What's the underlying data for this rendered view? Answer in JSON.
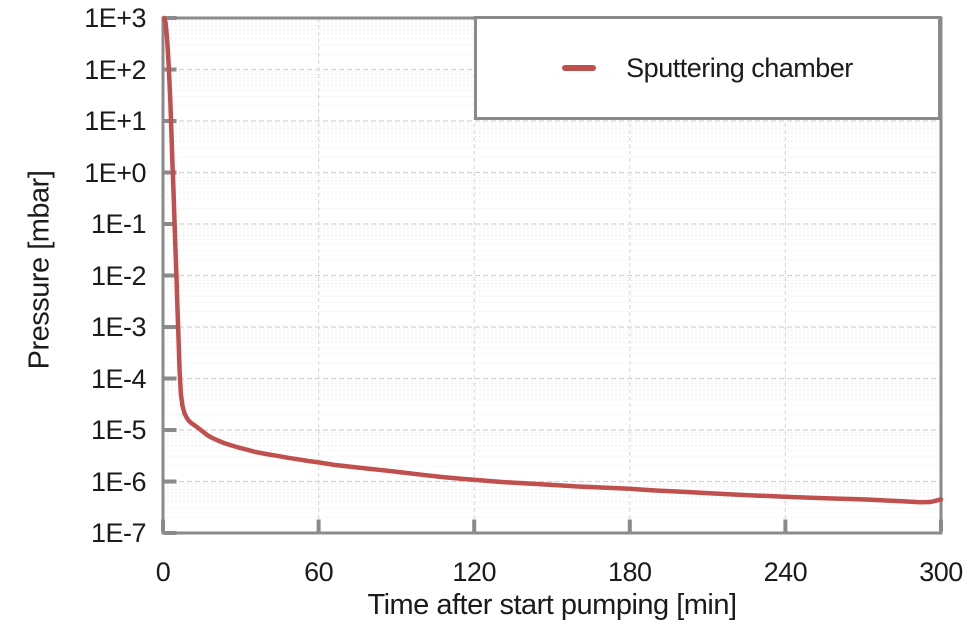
{
  "colors": {
    "series_red": "#C0504D",
    "axis_gray": "#8A8A8A",
    "grid_major": "#D4D4D4",
    "grid_minor": "#EBEBEB",
    "grid_vertical": "#DCDCDC",
    "text": "#1B1B1B",
    "background": "#FFFFFF"
  },
  "chart_data": {
    "type": "line",
    "title": "",
    "xlabel": "Time after start pumping [min]",
    "ylabel": "Pressure [mbar]",
    "xlim": [
      0,
      300
    ],
    "x_ticks": [
      0,
      60,
      120,
      180,
      240,
      300
    ],
    "y_scale": "log",
    "ylim": [
      1e-07,
      1000
    ],
    "y_ticks": [
      {
        "value": 1000,
        "label": "1E+3"
      },
      {
        "value": 100,
        "label": "1E+2"
      },
      {
        "value": 10,
        "label": "1E+1"
      },
      {
        "value": 1,
        "label": "1E+0"
      },
      {
        "value": 0.1,
        "label": "1E-1"
      },
      {
        "value": 0.01,
        "label": "1E-2"
      },
      {
        "value": 0.001,
        "label": "1E-3"
      },
      {
        "value": 0.0001,
        "label": "1E-4"
      },
      {
        "value": 1e-05,
        "label": "1E-5"
      },
      {
        "value": 1e-06,
        "label": "1E-6"
      },
      {
        "value": 1e-07,
        "label": "1E-7"
      }
    ],
    "grid": {
      "major_horizontal": "dashed",
      "minor_horizontal": "dotted",
      "vertical": "dashed"
    },
    "legend": {
      "position": "top-right",
      "entries": [
        {
          "label": "Sputtering chamber",
          "color": "#C0504D"
        }
      ]
    },
    "series": [
      {
        "name": "Sputtering chamber",
        "color": "#C0504D",
        "points": [
          [
            0.5,
            1000
          ],
          [
            1,
            800
          ],
          [
            1.6,
            400
          ],
          [
            2.2,
            120
          ],
          [
            2.8,
            25
          ],
          [
            3.2,
            7
          ],
          [
            3.6,
            1.8
          ],
          [
            4,
            0.5
          ],
          [
            4.4,
            0.13
          ],
          [
            4.8,
            0.035
          ],
          [
            5.2,
            0.009
          ],
          [
            5.6,
            0.0022
          ],
          [
            6,
            0.00055
          ],
          [
            6.4,
            0.00014
          ],
          [
            6.9,
            5e-05
          ],
          [
            7.5,
            3e-05
          ],
          [
            8.3,
            2.1e-05
          ],
          [
            9.2,
            1.7e-05
          ],
          [
            10,
            1.5e-05
          ],
          [
            11,
            1.35e-05
          ],
          [
            12.5,
            1.2e-05
          ],
          [
            14,
            1.05e-05
          ],
          [
            15.5,
            9.2e-06
          ],
          [
            17,
            8e-06
          ],
          [
            19,
            7e-06
          ],
          [
            21,
            6.3e-06
          ],
          [
            23.5,
            5.6e-06
          ],
          [
            26,
            5.1e-06
          ],
          [
            29,
            4.6e-06
          ],
          [
            32,
            4.2e-06
          ],
          [
            36,
            3.7e-06
          ],
          [
            40,
            3.4e-06
          ],
          [
            44,
            3.15e-06
          ],
          [
            48,
            2.9e-06
          ],
          [
            52,
            2.7e-06
          ],
          [
            56,
            2.5e-06
          ],
          [
            60,
            2.35e-06
          ],
          [
            66,
            2.1e-06
          ],
          [
            72,
            1.95e-06
          ],
          [
            78,
            1.8e-06
          ],
          [
            85,
            1.65e-06
          ],
          [
            92,
            1.5e-06
          ],
          [
            100,
            1.35e-06
          ],
          [
            108,
            1.22e-06
          ],
          [
            116,
            1.12e-06
          ],
          [
            124,
            1.04e-06
          ],
          [
            132,
            9.7e-07
          ],
          [
            140,
            9.2e-07
          ],
          [
            150,
            8.6e-07
          ],
          [
            160,
            8e-07
          ],
          [
            170,
            7.6e-07
          ],
          [
            180,
            7.2e-07
          ],
          [
            190,
            6.7e-07
          ],
          [
            200,
            6.3e-07
          ],
          [
            210,
            5.95e-07
          ],
          [
            220,
            5.6e-07
          ],
          [
            230,
            5.3e-07
          ],
          [
            240,
            5.05e-07
          ],
          [
            250,
            4.85e-07
          ],
          [
            260,
            4.65e-07
          ],
          [
            270,
            4.5e-07
          ],
          [
            278,
            4.3e-07
          ],
          [
            286,
            4.1e-07
          ],
          [
            292,
            3.95e-07
          ],
          [
            296,
            4e-07
          ],
          [
            300,
            4.5e-07
          ]
        ]
      }
    ]
  }
}
